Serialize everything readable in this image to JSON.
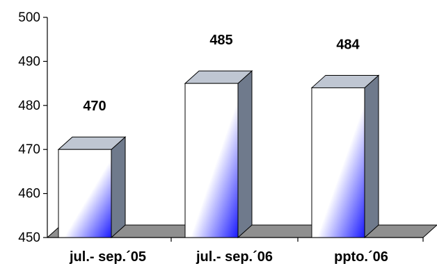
{
  "chart_data": {
    "type": "bar",
    "categories": [
      "jul.- sep.´05",
      "jul.- sep.´06",
      "ppto.´06"
    ],
    "values": [
      470,
      485,
      484
    ],
    "data_labels": [
      "470",
      "485",
      "484"
    ],
    "ylim": [
      450,
      500
    ],
    "yticks": [
      450,
      460,
      470,
      480,
      490,
      500
    ],
    "ytick_labels": [
      "450",
      "460",
      "470",
      "480",
      "490",
      "500"
    ],
    "grid": false,
    "legend": "none",
    "style": "3d-column",
    "colors": {
      "bar_front_light": "#ffffff",
      "bar_front_dark": "#1a1aff",
      "bar_side": "#6f7a8c",
      "bar_top": "#bfc6d2",
      "floor": "#8f8f8f",
      "axis": "#000000"
    }
  }
}
